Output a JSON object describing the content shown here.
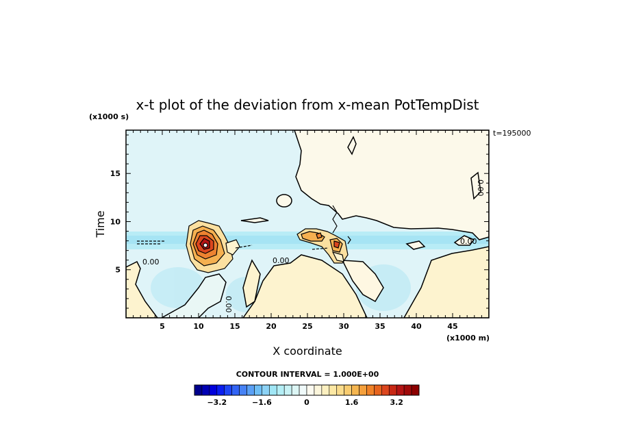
{
  "chart_data": {
    "type": "heatmap",
    "title": "x-t plot of the deviation from x-mean PotTempDist",
    "xlabel": "X coordinate",
    "ylabel": "Time",
    "x_unit": "(x1000 m)",
    "y_unit": "(x1000 s)",
    "time_stamp": "t=195000",
    "xlim": [
      0,
      50
    ],
    "ylim": [
      0,
      19.5
    ],
    "x_ticks": [
      5,
      10,
      15,
      20,
      25,
      30,
      35,
      40,
      45
    ],
    "y_ticks": [
      5,
      10,
      15
    ],
    "contour_interval": "CONTOUR INTERVAL = 1.000E+00",
    "contour_label": "0.00",
    "colorbar": {
      "min": -4.0,
      "max": 4.0,
      "step": 0.4,
      "tick_values": [
        -3.2,
        -1.6,
        0,
        1.6,
        3.2
      ],
      "tick_labels": [
        "−3.2",
        "−1.6",
        "0",
        "1.6",
        "3.2"
      ],
      "colors": [
        "#00008c",
        "#0000b4",
        "#0000dc",
        "#0a1ef0",
        "#1e46f5",
        "#3264f5",
        "#4682f5",
        "#5aa0f5",
        "#6ebef5",
        "#8cd2f5",
        "#a0e6f5",
        "#b4eef5",
        "#c8f2f5",
        "#dcf6f5",
        "#f0fafa",
        "#fcfaf0",
        "#fcf6dc",
        "#fcf0c0",
        "#fce8a4",
        "#fadc8c",
        "#f8cc70",
        "#f5b650",
        "#f5a03c",
        "#f08228",
        "#e6641e",
        "#dc461e",
        "#c82814",
        "#b41414",
        "#a00a0a",
        "#8c0000"
      ]
    },
    "features": [
      {
        "name": "warm region upper right",
        "x": [
          23,
          50
        ],
        "y": [
          9,
          19.5
        ],
        "value": 0.3
      },
      {
        "name": "warm anomaly",
        "x": [
          9,
          14
        ],
        "y": [
          6.5,
          9.5
        ],
        "value": 3.5
      },
      {
        "name": "warm anomaly",
        "x": [
          24,
          29
        ],
        "y": [
          6,
          9
        ],
        "value": 2.5
      },
      {
        "name": "cold band",
        "x": [
          0,
          50
        ],
        "y": [
          7.5,
          9.5
        ],
        "value": -1.0
      }
    ]
  }
}
